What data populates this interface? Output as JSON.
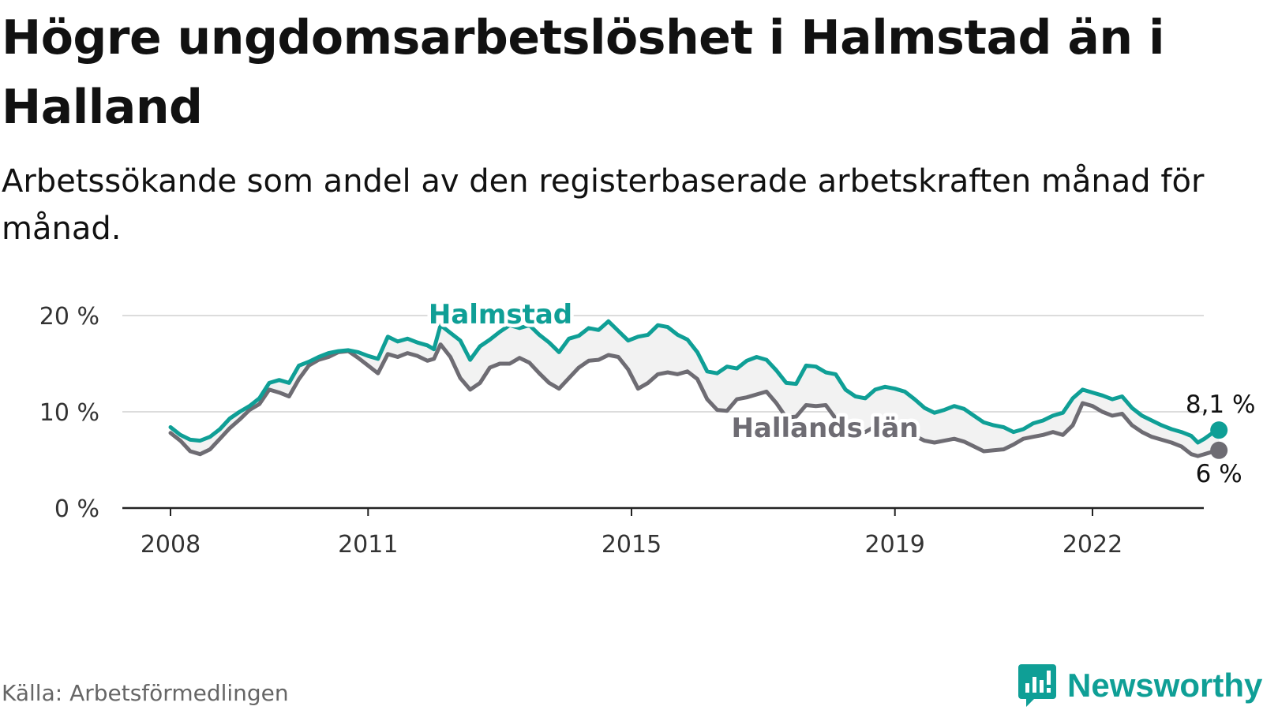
{
  "title": "Högre ungdomsarbetslöshet i Halmstad än i Halland",
  "subtitle": "Arbetssökande som andel av den registerbaserade arbetskraften månad för månad.",
  "source": "Källa: Arbetsförmedlingen",
  "brand": {
    "name": "Newsworthy",
    "color": "#0f9f96"
  },
  "chart_data": {
    "type": "line",
    "title": "Högre ungdomsarbetslöshet i Halmstad än i Halland",
    "xlabel": "",
    "ylabel": "",
    "x_range": [
      2008.0,
      2023.92
    ],
    "ylim": [
      0,
      20
    ],
    "y_ticks": [
      0,
      10,
      20
    ],
    "y_tick_labels": [
      "0 %",
      "10 %",
      "20 %"
    ],
    "x_ticks": [
      2008,
      2011,
      2015,
      2019,
      2022
    ],
    "x_tick_labels": [
      "2008",
      "2011",
      "2015",
      "2019",
      "2022"
    ],
    "grid": true,
    "shaded_gap_between_series": true,
    "series": [
      {
        "name": "Halmstad",
        "color": "#0f9f96",
        "end_label": "8,1 %",
        "points": [
          [
            2008.0,
            8.4
          ],
          [
            2008.15,
            7.6
          ],
          [
            2008.3,
            7.1
          ],
          [
            2008.45,
            7.0
          ],
          [
            2008.6,
            7.4
          ],
          [
            2008.75,
            8.2
          ],
          [
            2008.9,
            9.3
          ],
          [
            2009.05,
            10.0
          ],
          [
            2009.2,
            10.6
          ],
          [
            2009.35,
            11.4
          ],
          [
            2009.5,
            13.0
          ],
          [
            2009.65,
            13.3
          ],
          [
            2009.8,
            13.0
          ],
          [
            2009.95,
            14.8
          ],
          [
            2010.1,
            15.2
          ],
          [
            2010.25,
            15.7
          ],
          [
            2010.4,
            16.1
          ],
          [
            2010.55,
            16.3
          ],
          [
            2010.7,
            16.4
          ],
          [
            2010.85,
            16.2
          ],
          [
            2011.0,
            15.8
          ],
          [
            2011.15,
            15.5
          ],
          [
            2011.3,
            17.8
          ],
          [
            2011.45,
            17.3
          ],
          [
            2011.6,
            17.6
          ],
          [
            2011.75,
            17.2
          ],
          [
            2011.9,
            16.9
          ],
          [
            2012.0,
            16.5
          ],
          [
            2012.1,
            19.0
          ],
          [
            2012.25,
            18.2
          ],
          [
            2012.4,
            17.4
          ],
          [
            2012.55,
            15.4
          ],
          [
            2012.7,
            16.8
          ],
          [
            2012.85,
            17.5
          ],
          [
            2013.0,
            18.3
          ],
          [
            2013.15,
            19.0
          ],
          [
            2013.3,
            18.7
          ],
          [
            2013.45,
            19.0
          ],
          [
            2013.6,
            18.0
          ],
          [
            2013.75,
            17.2
          ],
          [
            2013.9,
            16.2
          ],
          [
            2014.05,
            17.6
          ],
          [
            2014.2,
            17.9
          ],
          [
            2014.35,
            18.7
          ],
          [
            2014.5,
            18.5
          ],
          [
            2014.65,
            19.4
          ],
          [
            2014.8,
            18.4
          ],
          [
            2014.95,
            17.4
          ],
          [
            2015.1,
            17.8
          ],
          [
            2015.25,
            18.0
          ],
          [
            2015.4,
            19.0
          ],
          [
            2015.55,
            18.8
          ],
          [
            2015.7,
            18.0
          ],
          [
            2015.85,
            17.5
          ],
          [
            2016.0,
            16.2
          ],
          [
            2016.15,
            14.2
          ],
          [
            2016.3,
            14.0
          ],
          [
            2016.45,
            14.7
          ],
          [
            2016.6,
            14.5
          ],
          [
            2016.75,
            15.3
          ],
          [
            2016.9,
            15.7
          ],
          [
            2017.05,
            15.4
          ],
          [
            2017.2,
            14.3
          ],
          [
            2017.35,
            13.0
          ],
          [
            2017.5,
            12.9
          ],
          [
            2017.65,
            14.8
          ],
          [
            2017.8,
            14.7
          ],
          [
            2017.95,
            14.1
          ],
          [
            2018.1,
            13.9
          ],
          [
            2018.25,
            12.3
          ],
          [
            2018.4,
            11.6
          ],
          [
            2018.55,
            11.4
          ],
          [
            2018.7,
            12.3
          ],
          [
            2018.85,
            12.6
          ],
          [
            2019.0,
            12.4
          ],
          [
            2019.15,
            12.1
          ],
          [
            2019.3,
            11.3
          ],
          [
            2019.45,
            10.4
          ],
          [
            2019.6,
            9.9
          ],
          [
            2019.75,
            10.2
          ],
          [
            2019.9,
            10.6
          ],
          [
            2020.05,
            10.3
          ],
          [
            2020.2,
            9.6
          ],
          [
            2020.35,
            8.9
          ],
          [
            2020.5,
            8.6
          ],
          [
            2020.65,
            8.4
          ],
          [
            2020.8,
            7.9
          ],
          [
            2020.95,
            8.2
          ],
          [
            2021.1,
            8.8
          ],
          [
            2021.25,
            9.1
          ],
          [
            2021.4,
            9.6
          ],
          [
            2021.55,
            9.9
          ],
          [
            2021.7,
            11.4
          ],
          [
            2021.85,
            12.3
          ],
          [
            2022.0,
            12.0
          ],
          [
            2022.15,
            11.7
          ],
          [
            2022.3,
            11.3
          ],
          [
            2022.45,
            11.6
          ],
          [
            2022.6,
            10.4
          ],
          [
            2022.75,
            9.6
          ],
          [
            2022.9,
            9.1
          ],
          [
            2023.05,
            8.6
          ],
          [
            2023.2,
            8.2
          ],
          [
            2023.35,
            7.9
          ],
          [
            2023.5,
            7.5
          ],
          [
            2023.6,
            6.8
          ],
          [
            2023.7,
            7.2
          ],
          [
            2023.8,
            7.7
          ],
          [
            2023.92,
            8.1
          ]
        ]
      },
      {
        "name": "Hallands län",
        "color": "#6e6c73",
        "end_label": "6 %",
        "points": [
          [
            2008.0,
            7.8
          ],
          [
            2008.15,
            7.0
          ],
          [
            2008.3,
            5.9
          ],
          [
            2008.45,
            5.6
          ],
          [
            2008.6,
            6.1
          ],
          [
            2008.75,
            7.2
          ],
          [
            2008.9,
            8.3
          ],
          [
            2009.05,
            9.2
          ],
          [
            2009.2,
            10.2
          ],
          [
            2009.35,
            10.8
          ],
          [
            2009.5,
            12.3
          ],
          [
            2009.65,
            12.0
          ],
          [
            2009.8,
            11.6
          ],
          [
            2009.95,
            13.4
          ],
          [
            2010.1,
            14.8
          ],
          [
            2010.25,
            15.4
          ],
          [
            2010.4,
            15.7
          ],
          [
            2010.55,
            16.2
          ],
          [
            2010.7,
            16.3
          ],
          [
            2010.85,
            15.6
          ],
          [
            2011.0,
            14.8
          ],
          [
            2011.15,
            14.0
          ],
          [
            2011.3,
            16.0
          ],
          [
            2011.45,
            15.7
          ],
          [
            2011.6,
            16.1
          ],
          [
            2011.75,
            15.8
          ],
          [
            2011.9,
            15.3
          ],
          [
            2012.0,
            15.5
          ],
          [
            2012.1,
            17.0
          ],
          [
            2012.25,
            15.7
          ],
          [
            2012.4,
            13.5
          ],
          [
            2012.55,
            12.3
          ],
          [
            2012.7,
            13.0
          ],
          [
            2012.85,
            14.6
          ],
          [
            2013.0,
            15.0
          ],
          [
            2013.15,
            15.0
          ],
          [
            2013.3,
            15.6
          ],
          [
            2013.45,
            15.1
          ],
          [
            2013.6,
            14.0
          ],
          [
            2013.75,
            13.0
          ],
          [
            2013.9,
            12.4
          ],
          [
            2014.05,
            13.5
          ],
          [
            2014.2,
            14.6
          ],
          [
            2014.35,
            15.3
          ],
          [
            2014.5,
            15.4
          ],
          [
            2014.65,
            15.9
          ],
          [
            2014.8,
            15.7
          ],
          [
            2014.95,
            14.4
          ],
          [
            2015.1,
            12.4
          ],
          [
            2015.25,
            13.0
          ],
          [
            2015.4,
            13.9
          ],
          [
            2015.55,
            14.1
          ],
          [
            2015.7,
            13.9
          ],
          [
            2015.85,
            14.2
          ],
          [
            2016.0,
            13.4
          ],
          [
            2016.15,
            11.3
          ],
          [
            2016.3,
            10.2
          ],
          [
            2016.45,
            10.1
          ],
          [
            2016.6,
            11.3
          ],
          [
            2016.75,
            11.5
          ],
          [
            2016.9,
            11.8
          ],
          [
            2017.05,
            12.1
          ],
          [
            2017.2,
            10.9
          ],
          [
            2017.35,
            9.4
          ],
          [
            2017.5,
            9.5
          ],
          [
            2017.65,
            10.7
          ],
          [
            2017.8,
            10.6
          ],
          [
            2017.95,
            10.7
          ],
          [
            2018.1,
            9.3
          ],
          [
            2018.25,
            8.4
          ],
          [
            2018.4,
            8.0
          ],
          [
            2018.55,
            7.9
          ],
          [
            2018.7,
            8.5
          ],
          [
            2018.85,
            8.9
          ],
          [
            2019.0,
            8.7
          ],
          [
            2019.15,
            8.3
          ],
          [
            2019.3,
            7.5
          ],
          [
            2019.45,
            7.0
          ],
          [
            2019.6,
            6.8
          ],
          [
            2019.75,
            7.0
          ],
          [
            2019.9,
            7.2
          ],
          [
            2020.05,
            6.9
          ],
          [
            2020.2,
            6.4
          ],
          [
            2020.35,
            5.9
          ],
          [
            2020.5,
            6.0
          ],
          [
            2020.65,
            6.1
          ],
          [
            2020.8,
            6.6
          ],
          [
            2020.95,
            7.2
          ],
          [
            2021.1,
            7.4
          ],
          [
            2021.25,
            7.6
          ],
          [
            2021.4,
            7.9
          ],
          [
            2021.55,
            7.6
          ],
          [
            2021.7,
            8.6
          ],
          [
            2021.85,
            10.9
          ],
          [
            2022.0,
            10.6
          ],
          [
            2022.15,
            10.0
          ],
          [
            2022.3,
            9.6
          ],
          [
            2022.45,
            9.8
          ],
          [
            2022.6,
            8.6
          ],
          [
            2022.75,
            7.9
          ],
          [
            2022.9,
            7.4
          ],
          [
            2023.05,
            7.1
          ],
          [
            2023.2,
            6.8
          ],
          [
            2023.35,
            6.4
          ],
          [
            2023.5,
            5.6
          ],
          [
            2023.6,
            5.4
          ],
          [
            2023.7,
            5.6
          ],
          [
            2023.8,
            5.8
          ],
          [
            2023.92,
            6.0
          ]
        ]
      }
    ]
  }
}
